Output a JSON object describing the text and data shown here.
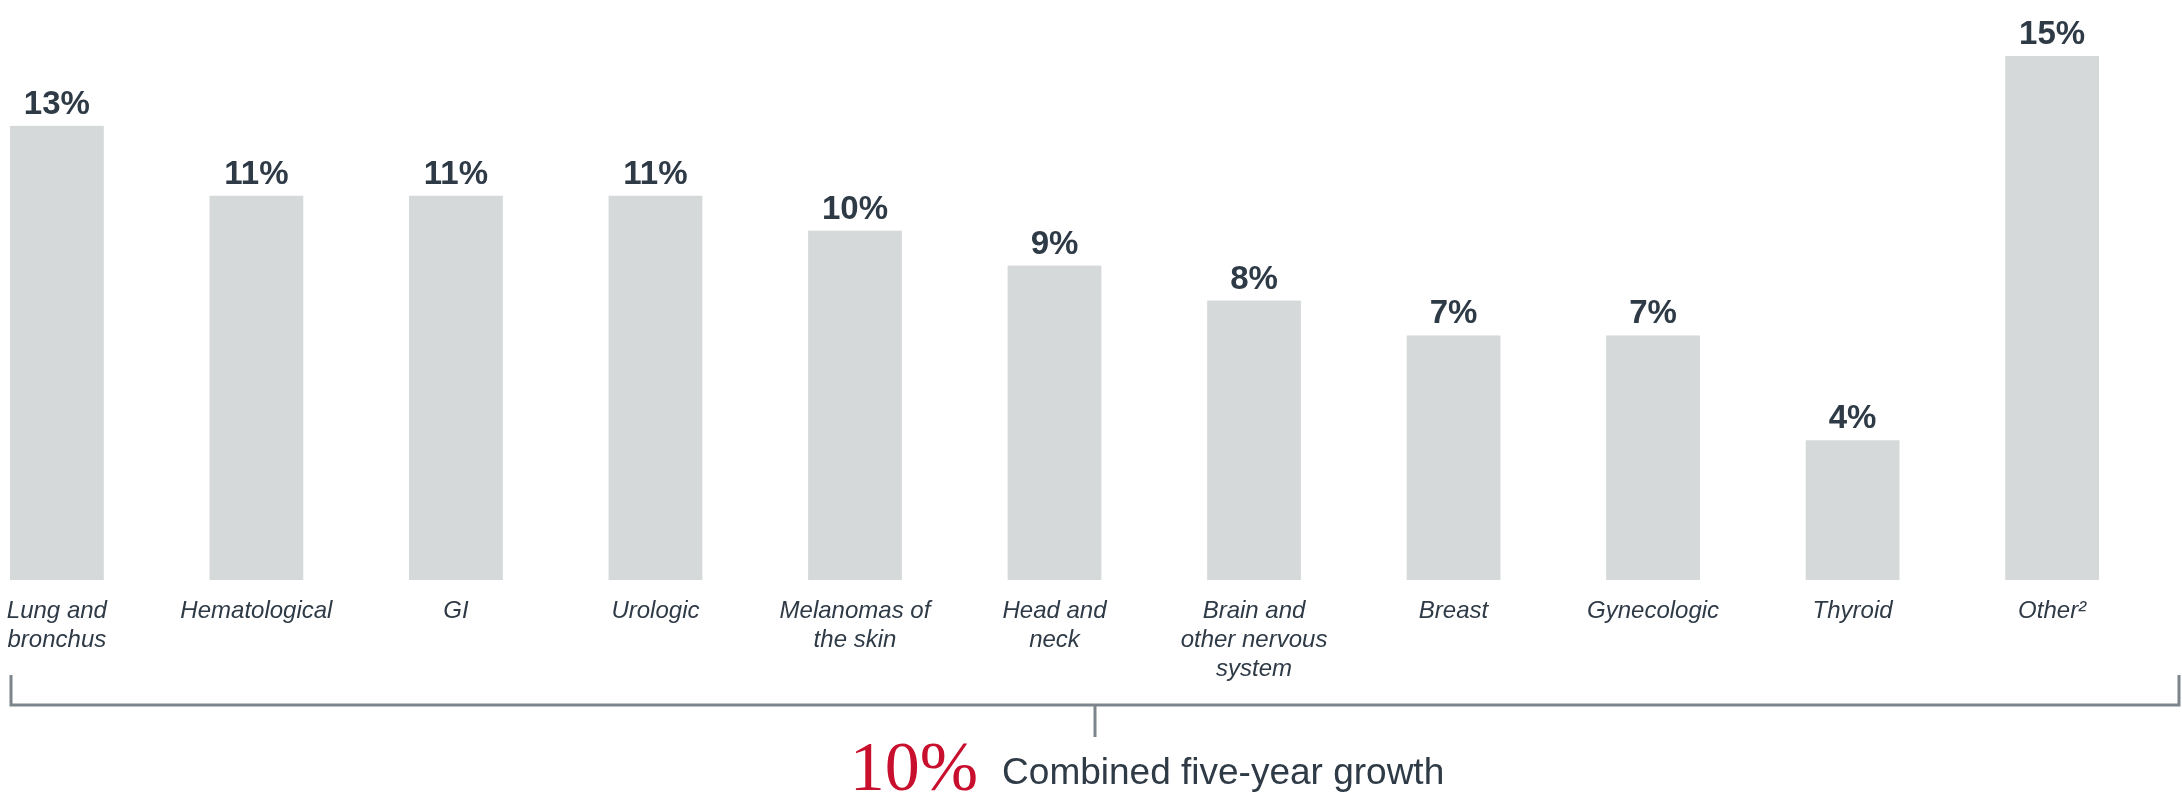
{
  "chart_data": {
    "type": "bar",
    "categories": [
      "Lung and bronchus",
      "Hematological",
      "GI",
      "Urologic",
      "Melanomas of the skin",
      "Head and neck",
      "Brain and other nervous system",
      "Breast",
      "Gynecologic",
      "Thyroid",
      "Other²"
    ],
    "values": [
      13,
      11,
      11,
      11,
      10,
      9,
      8,
      7,
      7,
      4,
      15
    ],
    "color": "#d5d9da",
    "value_labels": [
      "13%",
      "11%",
      "11%",
      "11%",
      "10%",
      "9%",
      "8%",
      "7%",
      "7%",
      "4%",
      "15%"
    ],
    "annotations": [
      "10%",
      "Combined five-year growth"
    ]
  }
}
